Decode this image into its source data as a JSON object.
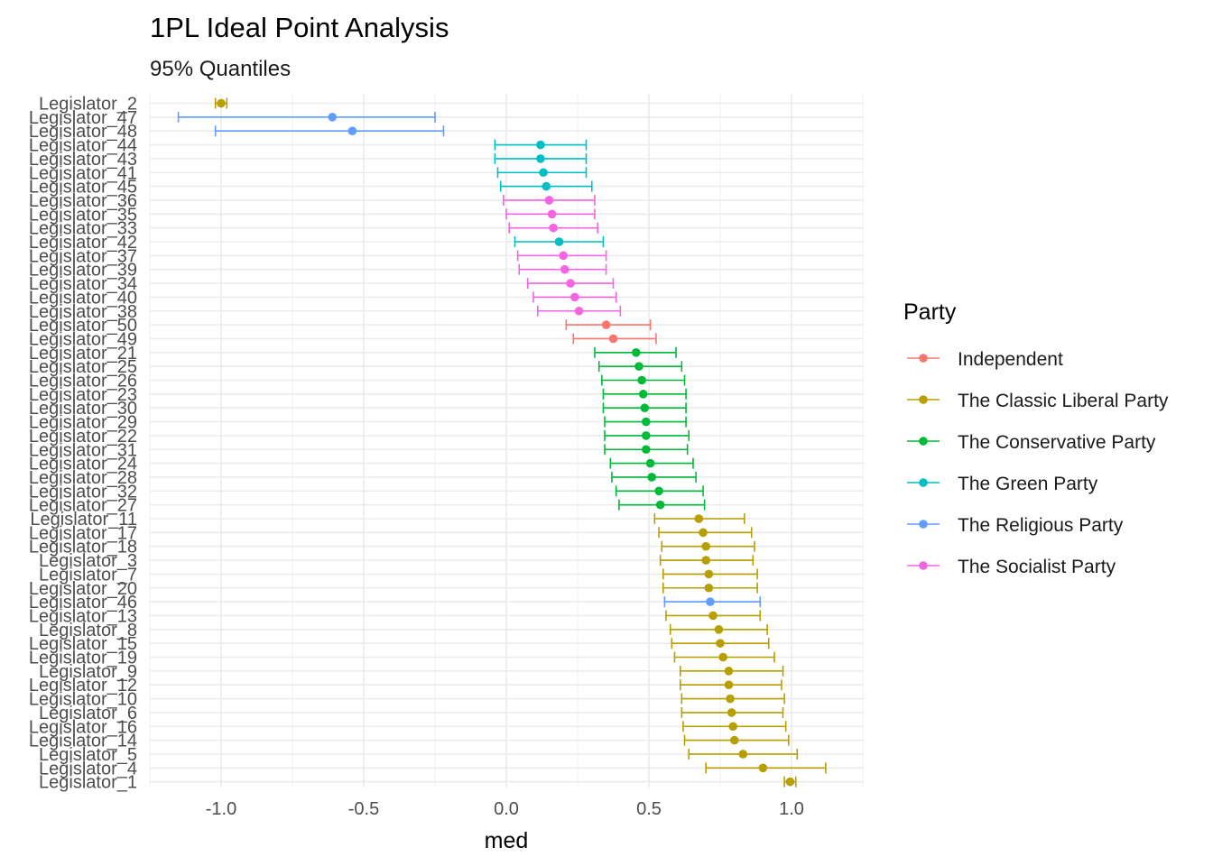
{
  "chart_data": {
    "type": "scatter",
    "title": "1PL Ideal Point Analysis",
    "subtitle": "95% Quantiles",
    "xlabel": "med",
    "ylabel": "",
    "xlim": [
      -1.25,
      1.25
    ],
    "x_ticks": [
      "-1.0",
      "-0.5",
      "0.0",
      "0.5",
      "1.0"
    ],
    "x_tick_values": [
      -1.0,
      -0.5,
      0.0,
      0.5,
      1.0
    ],
    "grid": true,
    "legend": {
      "title": "Party",
      "position": "right",
      "entries": [
        {
          "name": "Independent",
          "color": "#F8766D"
        },
        {
          "name": "The Classic Liberal Party",
          "color": "#B79F00"
        },
        {
          "name": "The Conservative Party",
          "color": "#00BA38"
        },
        {
          "name": "The Green Party",
          "color": "#00BFC4"
        },
        {
          "name": "The Religious Party",
          "color": "#619CFF"
        },
        {
          "name": "The Socialist Party",
          "color": "#F564E3"
        }
      ]
    },
    "points": [
      {
        "label": "Legislator_2",
        "party": "The Classic Liberal Party",
        "med": -1.0,
        "low": -1.02,
        "high": -0.98
      },
      {
        "label": "Legislator_47",
        "party": "The Religious Party",
        "med": -0.61,
        "low": -1.15,
        "high": -0.25
      },
      {
        "label": "Legislator_48",
        "party": "The Religious Party",
        "med": -0.54,
        "low": -1.02,
        "high": -0.22
      },
      {
        "label": "Legislator_44",
        "party": "The Green Party",
        "med": 0.12,
        "low": -0.04,
        "high": 0.28
      },
      {
        "label": "Legislator_43",
        "party": "The Green Party",
        "med": 0.12,
        "low": -0.04,
        "high": 0.28
      },
      {
        "label": "Legislator_41",
        "party": "The Green Party",
        "med": 0.13,
        "low": -0.03,
        "high": 0.28
      },
      {
        "label": "Legislator_45",
        "party": "The Green Party",
        "med": 0.14,
        "low": -0.02,
        "high": 0.3
      },
      {
        "label": "Legislator_36",
        "party": "The Socialist Party",
        "med": 0.15,
        "low": -0.01,
        "high": 0.31
      },
      {
        "label": "Legislator_35",
        "party": "The Socialist Party",
        "med": 0.16,
        "low": 0.0,
        "high": 0.31
      },
      {
        "label": "Legislator_33",
        "party": "The Socialist Party",
        "med": 0.165,
        "low": 0.01,
        "high": 0.32
      },
      {
        "label": "Legislator_42",
        "party": "The Green Party",
        "med": 0.185,
        "low": 0.03,
        "high": 0.34
      },
      {
        "label": "Legislator_37",
        "party": "The Socialist Party",
        "med": 0.2,
        "low": 0.04,
        "high": 0.35
      },
      {
        "label": "Legislator_39",
        "party": "The Socialist Party",
        "med": 0.205,
        "low": 0.045,
        "high": 0.35
      },
      {
        "label": "Legislator_34",
        "party": "The Socialist Party",
        "med": 0.225,
        "low": 0.075,
        "high": 0.375
      },
      {
        "label": "Legislator_40",
        "party": "The Socialist Party",
        "med": 0.24,
        "low": 0.095,
        "high": 0.385
      },
      {
        "label": "Legislator_38",
        "party": "The Socialist Party",
        "med": 0.255,
        "low": 0.11,
        "high": 0.4
      },
      {
        "label": "Legislator_50",
        "party": "Independent",
        "med": 0.35,
        "low": 0.21,
        "high": 0.505
      },
      {
        "label": "Legislator_49",
        "party": "Independent",
        "med": 0.375,
        "low": 0.235,
        "high": 0.525
      },
      {
        "label": "Legislator_21",
        "party": "The Conservative Party",
        "med": 0.455,
        "low": 0.31,
        "high": 0.595
      },
      {
        "label": "Legislator_25",
        "party": "The Conservative Party",
        "med": 0.465,
        "low": 0.325,
        "high": 0.615
      },
      {
        "label": "Legislator_26",
        "party": "The Conservative Party",
        "med": 0.475,
        "low": 0.335,
        "high": 0.625
      },
      {
        "label": "Legislator_23",
        "party": "The Conservative Party",
        "med": 0.48,
        "low": 0.34,
        "high": 0.63
      },
      {
        "label": "Legislator_30",
        "party": "The Conservative Party",
        "med": 0.485,
        "low": 0.34,
        "high": 0.63
      },
      {
        "label": "Legislator_29",
        "party": "The Conservative Party",
        "med": 0.49,
        "low": 0.345,
        "high": 0.63
      },
      {
        "label": "Legislator_22",
        "party": "The Conservative Party",
        "med": 0.49,
        "low": 0.345,
        "high": 0.64
      },
      {
        "label": "Legislator_31",
        "party": "The Conservative Party",
        "med": 0.49,
        "low": 0.345,
        "high": 0.635
      },
      {
        "label": "Legislator_24",
        "party": "The Conservative Party",
        "med": 0.505,
        "low": 0.365,
        "high": 0.655
      },
      {
        "label": "Legislator_28",
        "party": "The Conservative Party",
        "med": 0.51,
        "low": 0.37,
        "high": 0.665
      },
      {
        "label": "Legislator_32",
        "party": "The Conservative Party",
        "med": 0.535,
        "low": 0.385,
        "high": 0.69
      },
      {
        "label": "Legislator_27",
        "party": "The Conservative Party",
        "med": 0.54,
        "low": 0.395,
        "high": 0.695
      },
      {
        "label": "Legislator_11",
        "party": "The Classic Liberal Party",
        "med": 0.675,
        "low": 0.52,
        "high": 0.835
      },
      {
        "label": "Legislator_17",
        "party": "The Classic Liberal Party",
        "med": 0.69,
        "low": 0.535,
        "high": 0.86
      },
      {
        "label": "Legislator_18",
        "party": "The Classic Liberal Party",
        "med": 0.7,
        "low": 0.545,
        "high": 0.87
      },
      {
        "label": "Legislator_3",
        "party": "The Classic Liberal Party",
        "med": 0.7,
        "low": 0.54,
        "high": 0.865
      },
      {
        "label": "Legislator_7",
        "party": "The Classic Liberal Party",
        "med": 0.71,
        "low": 0.55,
        "high": 0.88
      },
      {
        "label": "Legislator_20",
        "party": "The Classic Liberal Party",
        "med": 0.71,
        "low": 0.55,
        "high": 0.88
      },
      {
        "label": "Legislator_46",
        "party": "The Religious Party",
        "med": 0.715,
        "low": 0.555,
        "high": 0.89
      },
      {
        "label": "Legislator_13",
        "party": "The Classic Liberal Party",
        "med": 0.725,
        "low": 0.56,
        "high": 0.89
      },
      {
        "label": "Legislator_8",
        "party": "The Classic Liberal Party",
        "med": 0.745,
        "low": 0.575,
        "high": 0.915
      },
      {
        "label": "Legislator_15",
        "party": "The Classic Liberal Party",
        "med": 0.75,
        "low": 0.58,
        "high": 0.92
      },
      {
        "label": "Legislator_19",
        "party": "The Classic Liberal Party",
        "med": 0.76,
        "low": 0.59,
        "high": 0.94
      },
      {
        "label": "Legislator_9",
        "party": "The Classic Liberal Party",
        "med": 0.78,
        "low": 0.61,
        "high": 0.97
      },
      {
        "label": "Legislator_12",
        "party": "The Classic Liberal Party",
        "med": 0.78,
        "low": 0.61,
        "high": 0.965
      },
      {
        "label": "Legislator_10",
        "party": "The Classic Liberal Party",
        "med": 0.785,
        "low": 0.615,
        "high": 0.975
      },
      {
        "label": "Legislator_6",
        "party": "The Classic Liberal Party",
        "med": 0.79,
        "low": 0.615,
        "high": 0.97
      },
      {
        "label": "Legislator_16",
        "party": "The Classic Liberal Party",
        "med": 0.795,
        "low": 0.62,
        "high": 0.98
      },
      {
        "label": "Legislator_14",
        "party": "The Classic Liberal Party",
        "med": 0.8,
        "low": 0.625,
        "high": 0.99
      },
      {
        "label": "Legislator_5",
        "party": "The Classic Liberal Party",
        "med": 0.83,
        "low": 0.64,
        "high": 1.02
      },
      {
        "label": "Legislator_4",
        "party": "The Classic Liberal Party",
        "med": 0.9,
        "low": 0.7,
        "high": 1.12
      },
      {
        "label": "Legislator_1",
        "party": "The Classic Liberal Party",
        "med": 0.995,
        "low": 0.975,
        "high": 1.015
      }
    ]
  }
}
